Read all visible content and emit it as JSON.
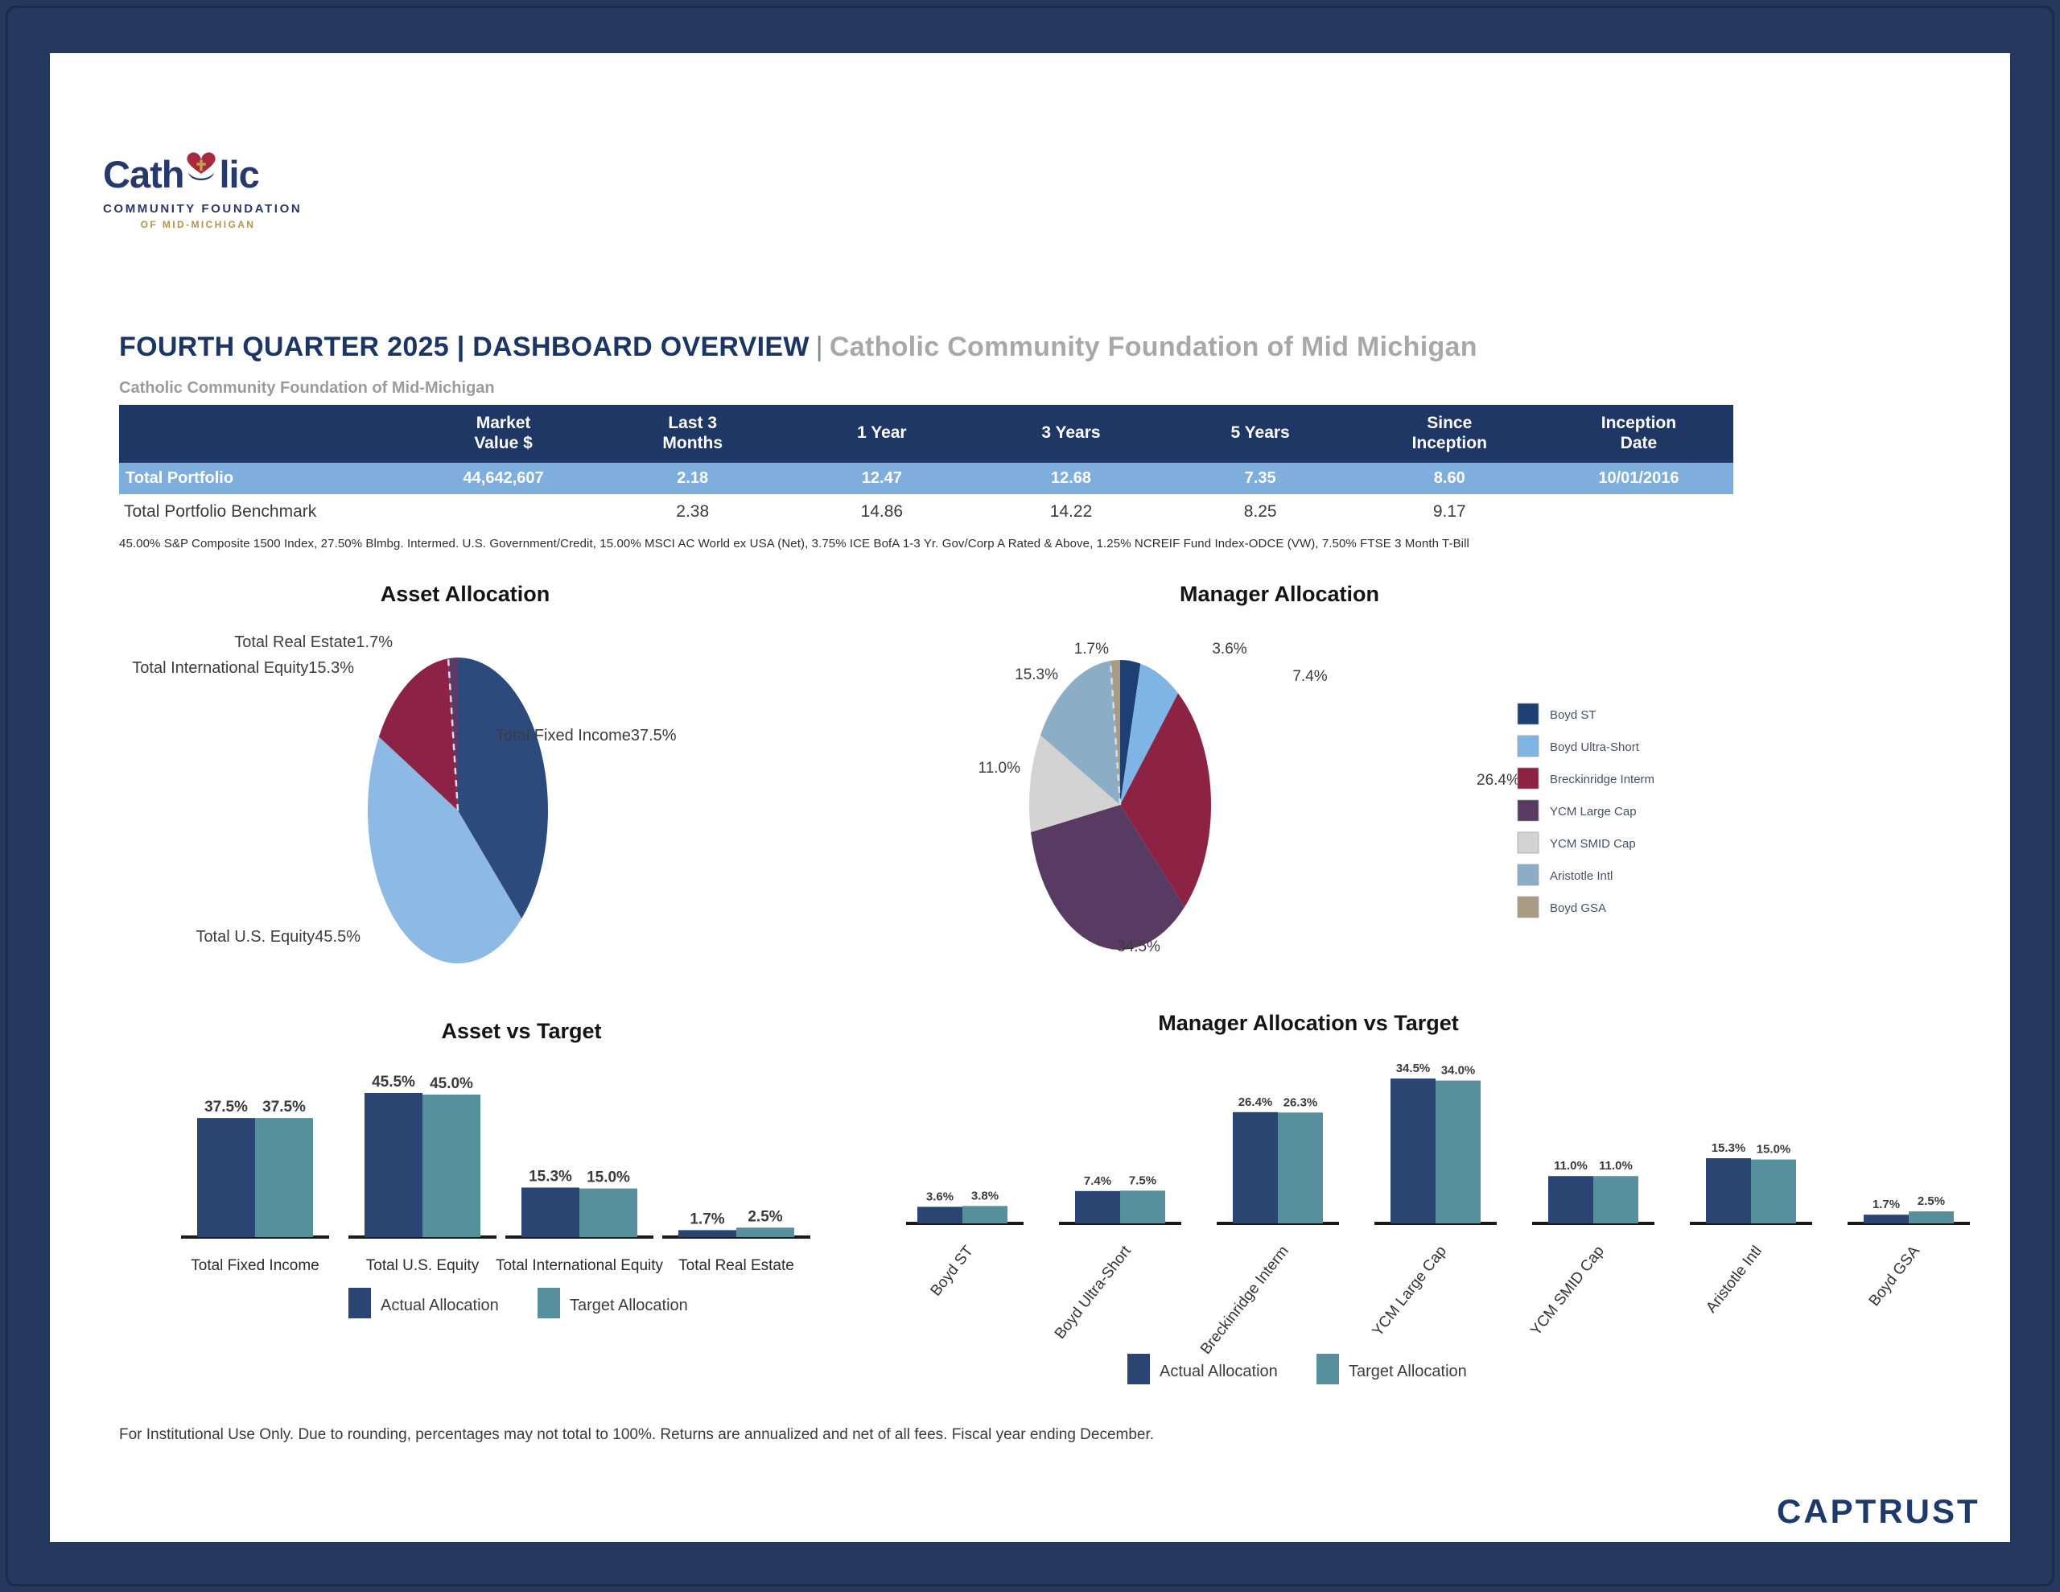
{
  "colors": {
    "frame_navy": "#25395E",
    "table_header_navy": "#1E3765",
    "highlight_row_blue": "#7FAEDD",
    "title_navy": "#1B3665",
    "brand_navy": "#1E3A6D",
    "logo_gold": "#B5954C",
    "heart_red": "#A82A3E",
    "actual_bar": "#2A4572",
    "target_bar": "#588F9C"
  },
  "logo": {
    "prefix": "Cath",
    "suffix": "lic",
    "line2": "COMMUNITY FOUNDATION",
    "line3": "OF MID-MICHIGAN"
  },
  "header": {
    "title_main": "FOURTH QUARTER 2025 | DASHBOARD OVERVIEW",
    "separator": "|",
    "title_client": "Catholic Community Foundation of Mid Michigan",
    "subtitle": "Catholic Community Foundation of Mid-Michigan"
  },
  "table": {
    "columns": [
      "",
      "Market\nValue $",
      "Last 3\nMonths",
      "1 Year",
      "3 Years",
      "5 Years",
      "Since\nInception",
      "Inception\nDate"
    ],
    "rows": [
      [
        "Total Portfolio",
        "44,642,607",
        "2.18",
        "12.47",
        "12.68",
        "7.35",
        "8.60",
        "10/01/2016"
      ],
      [
        "Total Portfolio Benchmark",
        "",
        "2.38",
        "14.86",
        "14.22",
        "8.25",
        "9.17",
        ""
      ]
    ],
    "footnote": "45.00% S&P Composite 1500 Index, 27.50% Blmbg. Intermed. U.S. Government/Credit, 15.00% MSCI AC World ex USA (Net), 3.75% ICE BofA 1-3 Yr. Gov/Corp A Rated & Above, 1.25% NCREIF Fund Index-ODCE (VW), 7.50% FTSE 3 Month T-Bill"
  },
  "chart_data": [
    {
      "id": "asset-pie",
      "type": "pie",
      "title": "Asset Allocation",
      "label_style": "name-and-percent",
      "slices": [
        {
          "label": "Total Fixed Income",
          "value": 37.5,
          "color": "#2C4A7C"
        },
        {
          "label": "Total U.S. Equity",
          "value": 45.5,
          "color": "#8CBAE4"
        },
        {
          "label": "Total International Equity",
          "value": 15.3,
          "color": "#8C2346"
        },
        {
          "label": "Total Real Estate",
          "value": 1.7,
          "color": "#5A3A66"
        }
      ]
    },
    {
      "id": "manager-pie",
      "type": "pie",
      "title": "Manager Allocation",
      "label_style": "percent",
      "legend_position": "right",
      "slices": [
        {
          "label": "Boyd ST",
          "value": 3.6,
          "color": "#1D3F72"
        },
        {
          "label": "Boyd Ultra-Short",
          "value": 7.4,
          "color": "#7FB5E5"
        },
        {
          "label": "Breckinridge Interm",
          "value": 26.4,
          "color": "#8C2244"
        },
        {
          "label": "YCM Large Cap",
          "value": 34.5,
          "color": "#593A62"
        },
        {
          "label": "YCM SMID Cap",
          "value": 11.0,
          "color": "#D3D3D3"
        },
        {
          "label": "Aristotle Intl",
          "value": 15.3,
          "color": "#8BAEC6"
        },
        {
          "label": "Boyd GSA",
          "value": 1.7,
          "color": "#A89C85"
        }
      ]
    },
    {
      "id": "asset-bar",
      "type": "bar",
      "title": "Asset vs Target",
      "value_suffix": "%",
      "categories": [
        "Total Fixed Income",
        "Total U.S. Equity",
        "Total International Equity",
        "Total Real Estate"
      ],
      "series": [
        {
          "name": "Actual Allocation",
          "color": "#2A4572",
          "values": [
            37.5,
            45.5,
            15.3,
            1.7
          ]
        },
        {
          "name": "Target Allocation",
          "color": "#588F9C",
          "values": [
            37.5,
            45.0,
            15.0,
            2.5
          ]
        }
      ]
    },
    {
      "id": "manager-bar",
      "type": "bar",
      "title": "Manager Allocation vs Target",
      "value_suffix": "%",
      "rotated_labels": true,
      "categories": [
        "Boyd ST",
        "Boyd Ultra-Short",
        "Breckinridge Interm",
        "YCM Large Cap",
        "YCM SMID Cap",
        "Aristotle Intl",
        "Boyd GSA"
      ],
      "series": [
        {
          "name": "Actual Allocation",
          "color": "#2A4572",
          "values": [
            3.6,
            7.4,
            26.4,
            34.5,
            11.0,
            15.3,
            1.7
          ]
        },
        {
          "name": "Target Allocation",
          "color": "#588F9C",
          "values": [
            3.8,
            7.5,
            26.3,
            34.0,
            11.0,
            15.0,
            2.5
          ]
        }
      ]
    }
  ],
  "footer": {
    "disclaimer": "For Institutional Use Only. Due to rounding, percentages may not total to 100%. Returns are annualized and net of all fees. Fiscal year ending December.",
    "brand": "CAPTRUST"
  }
}
